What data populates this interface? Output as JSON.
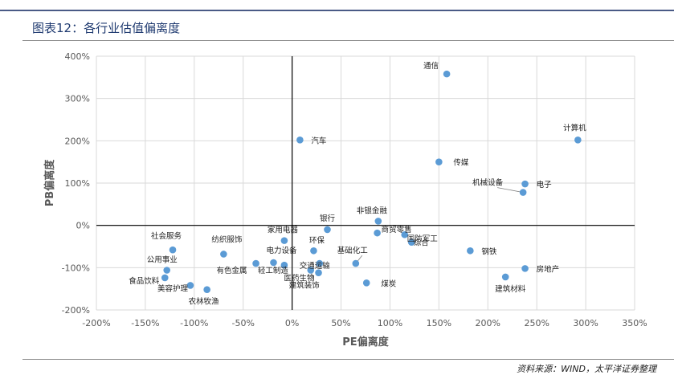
{
  "figure": {
    "title": "图表12：各行业估值偏离度",
    "source": "资料来源：WIND，太平洋证券整理"
  },
  "colors": {
    "point": "#5b9bd5",
    "axis": "#000000",
    "grid": "#d9d9d9",
    "rule": "#4a5a86"
  },
  "chart_data": {
    "type": "scatter",
    "title": "",
    "xlabel": "PE偏离度",
    "ylabel": "PB偏离度",
    "xlim": [
      -200,
      350
    ],
    "ylim": [
      -200,
      400
    ],
    "x_ticks": [
      -200,
      -150,
      -100,
      -50,
      0,
      50,
      100,
      150,
      200,
      250,
      300,
      350
    ],
    "y_ticks": [
      -200,
      -100,
      0,
      100,
      200,
      300,
      400
    ],
    "x_tick_labels": [
      "-200%",
      "-150%",
      "-100%",
      "-50%",
      "0%",
      "50%",
      "100%",
      "150%",
      "200%",
      "250%",
      "300%",
      "350%"
    ],
    "y_tick_labels": [
      "-200%",
      "-100%",
      "0%",
      "100%",
      "200%",
      "300%",
      "400%"
    ],
    "grid": true,
    "legend": "none",
    "points": [
      {
        "label": "通信",
        "x": 158,
        "y": 358
      },
      {
        "label": "计算机",
        "x": 292,
        "y": 202
      },
      {
        "label": "汽车",
        "x": 8,
        "y": 202
      },
      {
        "label": "传媒",
        "x": 150,
        "y": 150
      },
      {
        "label": "电子",
        "x": 238,
        "y": 98
      },
      {
        "label": "机械设备",
        "x": 236,
        "y": 78
      },
      {
        "label": "银行",
        "x": 36,
        "y": -10
      },
      {
        "label": "非银金融",
        "x": 88,
        "y": 10
      },
      {
        "label": "商贸零售",
        "x": 87,
        "y": -18
      },
      {
        "label": "国防军工",
        "x": 115,
        "y": -22
      },
      {
        "label": "综合",
        "x": 122,
        "y": -40
      },
      {
        "label": "家用电器",
        "x": -8,
        "y": -36
      },
      {
        "label": "环保",
        "x": 22,
        "y": -60
      },
      {
        "label": "基础化工",
        "x": 65,
        "y": -90
      },
      {
        "label": "交通运输",
        "x": 28,
        "y": -90
      },
      {
        "label": "电力设备",
        "x": -19,
        "y": -88
      },
      {
        "label": "轻工制造",
        "x": -8,
        "y": -94
      },
      {
        "label": "建筑装饰",
        "x": 19,
        "y": -106
      },
      {
        "label": "医药生物",
        "x": 27,
        "y": -112
      },
      {
        "label": "煤炭",
        "x": 76,
        "y": -136
      },
      {
        "label": "钢铁",
        "x": 182,
        "y": -60
      },
      {
        "label": "房地产",
        "x": 238,
        "y": -102
      },
      {
        "label": "建筑材料",
        "x": 218,
        "y": -122
      },
      {
        "label": "纺织服饰",
        "x": -70,
        "y": -68
      },
      {
        "label": "有色金属",
        "x": -37,
        "y": -90
      },
      {
        "label": "社会服务",
        "x": -122,
        "y": -58
      },
      {
        "label": "公用事业",
        "x": -128,
        "y": -106
      },
      {
        "label": "食品饮料",
        "x": -130,
        "y": -124
      },
      {
        "label": "美容护理",
        "x": -104,
        "y": -142
      },
      {
        "label": "农林牧渔",
        "x": -87,
        "y": -152
      }
    ]
  }
}
